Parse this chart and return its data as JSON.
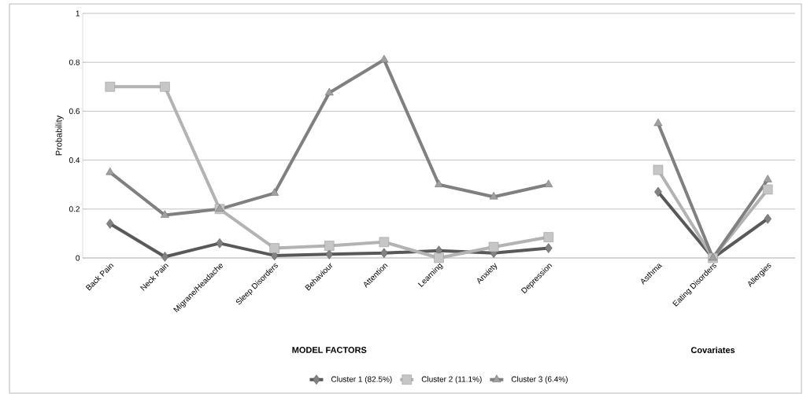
{
  "chart_data": {
    "type": "line",
    "ylabel": "Probability",
    "categories": [
      "Back Pain",
      "Neck Pain",
      "Migrane/Headache",
      "Sleep Disorders",
      "Behaviour",
      "Attention",
      "Learning",
      "Anxiety",
      "Depression",
      null,
      "Asthma",
      "Eating Disorders",
      "Allergies"
    ],
    "series": [
      {
        "name": "Cluster 1 (82.5%)",
        "color": "#595959",
        "marker": "diamond",
        "values": [
          0.14,
          0.005,
          0.06,
          0.01,
          0.015,
          0.02,
          0.03,
          0.02,
          0.04,
          null,
          0.27,
          0,
          0.16
        ]
      },
      {
        "name": "Cluster 2 (11.1%)",
        "color": "#b3b3b3",
        "marker": "square",
        "values": [
          0.7,
          0.7,
          0.2,
          0.04,
          0.05,
          0.065,
          0,
          0.045,
          0.085,
          null,
          0.36,
          0,
          0.28
        ]
      },
      {
        "name": "Cluster 3 (6.4%)",
        "color": "#808080",
        "marker": "triangle",
        "values": [
          0.35,
          0.175,
          0.2,
          0.265,
          0.675,
          0.81,
          0.3,
          0.25,
          0.3,
          null,
          0.55,
          0,
          0.32
        ]
      }
    ],
    "ylim": [
      0,
      1
    ],
    "yticks": [
      0,
      0.2,
      0.4,
      0.6,
      0.8,
      1
    ],
    "grid": "y",
    "legend": "bottom",
    "line_style": "solid",
    "annotations": [
      "MODEL FACTORS",
      "Covariates"
    ]
  }
}
